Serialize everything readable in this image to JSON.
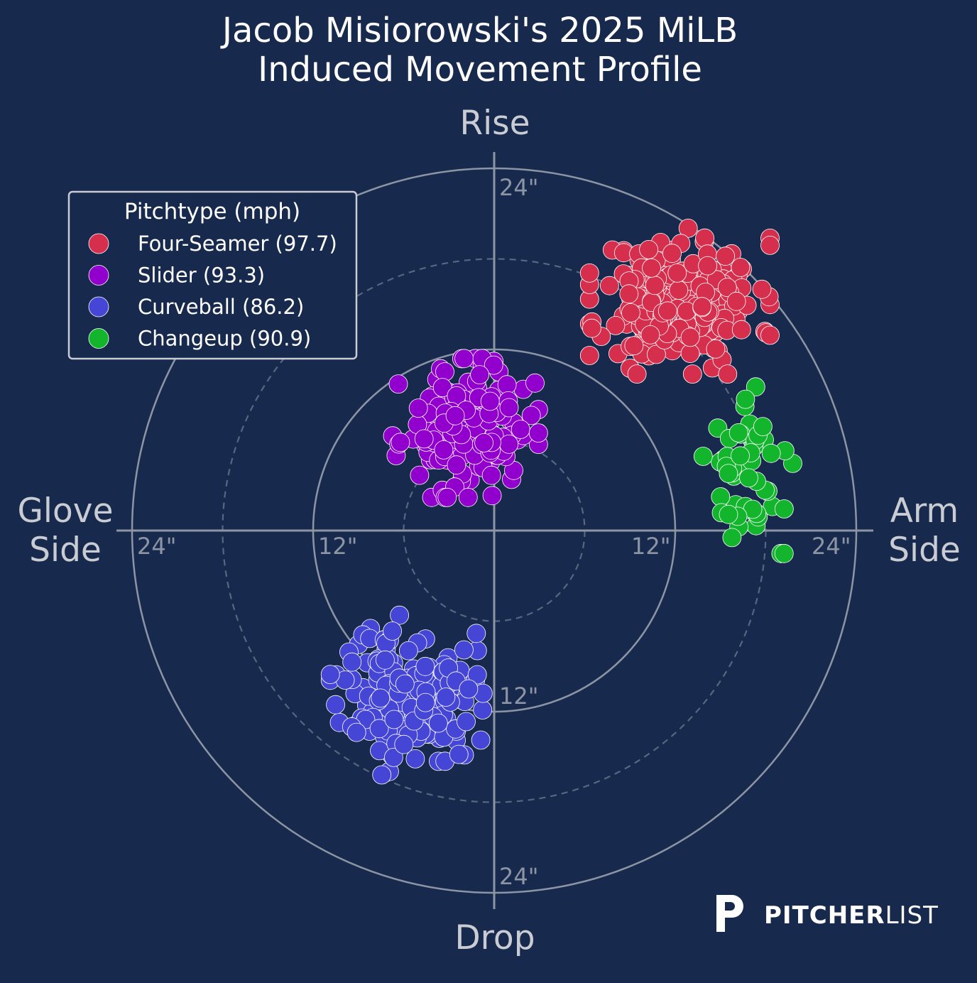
{
  "chart_data": {
    "type": "scatter",
    "title": "Jacob Misiorowski's 2025 MiLB",
    "subtitle": "Induced Movement Profile",
    "axis_labels": {
      "top": "Rise",
      "bottom": "Drop",
      "left_line1": "Glove",
      "left_line2": "Side",
      "right_line1": "Arm",
      "right_line2": "Side"
    },
    "ring_labels": {
      "left": "24\"",
      "left_inner": "12\"",
      "right_inner": "12\"",
      "right": "24\"",
      "top": "24\"",
      "bottom_inner": "12\"",
      "bottom": "24\""
    },
    "xlim": [
      -24,
      24
    ],
    "ylim": [
      -24,
      24
    ],
    "x_unit": "inches horizontal break (positive = arm side)",
    "y_unit": "inches induced vertical break",
    "grid": "polar rings at 6, 12, 18, 24 inches",
    "legend": {
      "title": "Pitchtype (mph)",
      "position": "top-left"
    },
    "series": [
      {
        "name": "Four-Seamer (97.7)",
        "color": "#d62f4d",
        "count": 230,
        "center": [
          12.3,
          15.2
        ],
        "spread": [
          2.6,
          2.1
        ],
        "seed": 11
      },
      {
        "name": "Slider (93.3)",
        "color": "#9100cc",
        "count": 160,
        "center": [
          -1.9,
          6.8
        ],
        "spread": [
          2.1,
          2.0
        ],
        "seed": 23
      },
      {
        "name": "Curveball (86.2)",
        "color": "#4545d6",
        "count": 160,
        "center": [
          -5.8,
          -10.9
        ],
        "spread": [
          2.2,
          2.3
        ],
        "seed": 37
      },
      {
        "name": "Changeup (90.9)",
        "color": "#12b52c",
        "count": 55,
        "center": [
          17.3,
          4.0
        ],
        "spread": [
          1.5,
          2.4
        ],
        "seed": 41
      }
    ]
  },
  "brand": {
    "bold": "PITCHER",
    "thin": "LIST",
    "icon": "pitcherlist-p-icon"
  }
}
